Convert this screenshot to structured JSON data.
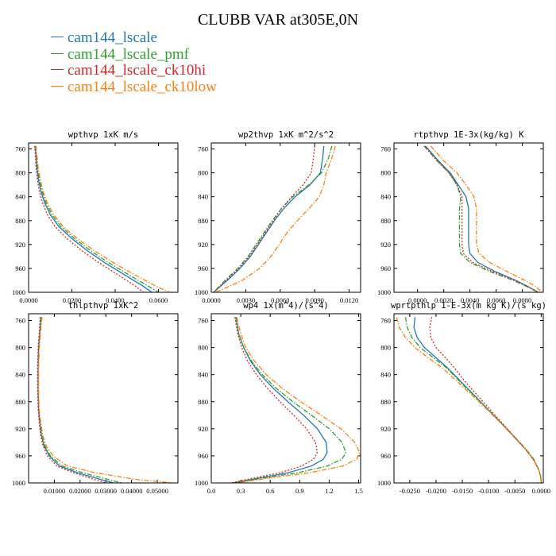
{
  "title": "CLUBB VAR at305E,0N",
  "legend": [
    {
      "label": "cam144_lscale",
      "color": "#1f77b4"
    },
    {
      "label": "cam144_lscale_pmf",
      "color": "#2ca02c"
    },
    {
      "label": "cam144_lscale_ck10hi",
      "color": "#d62728"
    },
    {
      "label": "cam144_lscale_ck10low",
      "color": "#ff7f0e"
    }
  ],
  "chart_data": [
    {
      "type": "line",
      "title": "wpthvp   1xK m/s",
      "xlim": [
        0,
        0.069
      ],
      "xticks": [
        0,
        0.02,
        0.04,
        0.06
      ],
      "xtick_labels": [
        "0.0000",
        "0.0200",
        "0.0400",
        "0.0600"
      ],
      "ylim": [
        1000,
        750
      ],
      "yticks": [
        760,
        800,
        840,
        880,
        920,
        960,
        1000
      ],
      "ytick_labels": [
        "760",
        "800",
        "840",
        "880",
        "920",
        "960",
        "1000"
      ],
      "y": [
        755,
        770,
        790,
        810,
        830,
        850,
        870,
        890,
        910,
        930,
        950,
        970,
        990,
        1000
      ],
      "series": [
        {
          "color": "#1f77b4",
          "dash": "solid",
          "values": [
            0.003,
            0.0034,
            0.0038,
            0.0045,
            0.0056,
            0.0074,
            0.01,
            0.014,
            0.02,
            0.027,
            0.035,
            0.044,
            0.053,
            0.057
          ]
        },
        {
          "color": "#2ca02c",
          "dash": "dashdot",
          "values": [
            0.0032,
            0.0036,
            0.0041,
            0.0049,
            0.0061,
            0.008,
            0.0108,
            0.015,
            0.0212,
            0.0285,
            0.0368,
            0.046,
            0.0555,
            0.06
          ]
        },
        {
          "color": "#d62728",
          "dash": "dot",
          "values": [
            0.0028,
            0.0031,
            0.0034,
            0.004,
            0.0049,
            0.0064,
            0.0087,
            0.0122,
            0.0177,
            0.0245,
            0.0323,
            0.041,
            0.0495,
            0.053
          ]
        },
        {
          "color": "#ff7f0e",
          "dash": "dashdot",
          "values": [
            0.0034,
            0.0038,
            0.0044,
            0.0053,
            0.0066,
            0.0086,
            0.0116,
            0.016,
            0.0225,
            0.0302,
            0.039,
            0.0487,
            0.059,
            0.065
          ]
        }
      ]
    },
    {
      "type": "line",
      "title": "wp2thvp   1xK m^2/s^2",
      "xlim": [
        0,
        0.013
      ],
      "xticks": [
        0,
        0.003,
        0.006,
        0.009,
        0.012
      ],
      "xtick_labels": [
        "0.0000",
        "0.0030",
        "0.0060",
        "0.0090",
        "0.0120"
      ],
      "ylim": [
        1000,
        750
      ],
      "yticks": [
        760,
        800,
        840,
        880,
        920,
        960,
        1000
      ],
      "ytick_labels": [
        "760",
        "800",
        "840",
        "880",
        "920",
        "960",
        "1000"
      ],
      "y": [
        755,
        775,
        800,
        820,
        840,
        860,
        880,
        900,
        920,
        940,
        960,
        980,
        1000
      ],
      "series": [
        {
          "color": "#1f77b4",
          "dash": "solid",
          "values": [
            0.0098,
            0.0097,
            0.0095,
            0.0086,
            0.0073,
            0.0063,
            0.0055,
            0.0048,
            0.0041,
            0.0034,
            0.0025,
            0.0014,
            0.0002
          ]
        },
        {
          "color": "#2ca02c",
          "dash": "dashdot",
          "values": [
            0.0105,
            0.0102,
            0.0096,
            0.0085,
            0.0071,
            0.0061,
            0.0053,
            0.0046,
            0.0039,
            0.0032,
            0.0023,
            0.0012,
            0.0002
          ]
        },
        {
          "color": "#d62728",
          "dash": "dot",
          "values": [
            0.009,
            0.0089,
            0.0087,
            0.008,
            0.007,
            0.0061,
            0.0054,
            0.0047,
            0.004,
            0.0033,
            0.0024,
            0.0013,
            0.0002
          ]
        },
        {
          "color": "#ff7f0e",
          "dash": "dashdot",
          "values": [
            0.0108,
            0.0105,
            0.01,
            0.0098,
            0.0094,
            0.0085,
            0.0075,
            0.0066,
            0.0059,
            0.0052,
            0.0042,
            0.0027,
            0.0004
          ]
        }
      ]
    },
    {
      "type": "line",
      "title": "rtpthvp   1E-3x(kg/kg) K",
      "xlim": [
        -0.0018,
        0.0096
      ],
      "xticks": [
        0,
        0.002,
        0.004,
        0.006,
        0.008
      ],
      "xtick_labels": [
        "0.0000",
        "0.0020",
        "0.0040",
        "0.0060",
        "0.0080"
      ],
      "ylim": [
        1000,
        750
      ],
      "yticks": [
        760,
        800,
        840,
        880,
        920,
        960,
        1000
      ],
      "ytick_labels": [
        "760",
        "800",
        "840",
        "880",
        "920",
        "960",
        "1000"
      ],
      "y": [
        755,
        780,
        800,
        820,
        840,
        860,
        880,
        900,
        920,
        935,
        950,
        965,
        980,
        990,
        1000
      ],
      "series": [
        {
          "color": "#1f77b4",
          "dash": "solid",
          "values": [
            0.0006,
            0.0016,
            0.0025,
            0.0031,
            0.0037,
            0.0039,
            0.0039,
            0.0039,
            0.0039,
            0.004,
            0.0046,
            0.0059,
            0.0075,
            0.0084,
            0.0092
          ]
        },
        {
          "color": "#2ca02c",
          "dash": "dashdot",
          "values": [
            0.0005,
            0.0015,
            0.0024,
            0.003,
            0.0033,
            0.0032,
            0.0032,
            0.0032,
            0.0032,
            0.0033,
            0.004,
            0.0055,
            0.0073,
            0.0083,
            0.0092
          ]
        },
        {
          "color": "#d62728",
          "dash": "dot",
          "values": [
            0.0005,
            0.0015,
            0.0024,
            0.003,
            0.0034,
            0.0034,
            0.0034,
            0.0034,
            0.0034,
            0.0035,
            0.0042,
            0.0057,
            0.0074,
            0.0084,
            0.0092
          ]
        },
        {
          "color": "#ff7f0e",
          "dash": "dashdot",
          "values": [
            0.001,
            0.002,
            0.003,
            0.0037,
            0.0043,
            0.0045,
            0.0045,
            0.0045,
            0.0045,
            0.0047,
            0.0055,
            0.0068,
            0.0082,
            0.009,
            0.0095
          ]
        }
      ]
    },
    {
      "type": "line",
      "title": "thlpthvp   1xK^2",
      "xlim": [
        0,
        0.058
      ],
      "xticks": [
        0.01,
        0.02,
        0.03,
        0.04,
        0.05
      ],
      "xtick_labels": [
        "0.01000",
        "0.02000",
        "0.03000",
        "0.04000",
        "0.05000"
      ],
      "ylim": [
        1000,
        750
      ],
      "yticks": [
        760,
        800,
        840,
        880,
        920,
        960,
        1000
      ],
      "ytick_labels": [
        "760",
        "800",
        "840",
        "880",
        "920",
        "960",
        "1000"
      ],
      "y": [
        755,
        780,
        800,
        830,
        860,
        890,
        910,
        930,
        945,
        960,
        975,
        985,
        995,
        1000
      ],
      "series": [
        {
          "color": "#1f77b4",
          "dash": "solid",
          "values": [
            0.0048,
            0.0043,
            0.0039,
            0.0037,
            0.0037,
            0.0039,
            0.0043,
            0.005,
            0.006,
            0.008,
            0.012,
            0.019,
            0.028,
            0.033
          ]
        },
        {
          "color": "#2ca02c",
          "dash": "dashdot",
          "values": [
            0.005,
            0.0044,
            0.004,
            0.0038,
            0.0038,
            0.004,
            0.0045,
            0.0052,
            0.0063,
            0.0085,
            0.013,
            0.021,
            0.031,
            0.036
          ]
        },
        {
          "color": "#d62728",
          "dash": "dot",
          "values": [
            0.0045,
            0.0041,
            0.0037,
            0.0035,
            0.0035,
            0.0037,
            0.0041,
            0.0047,
            0.0056,
            0.0073,
            0.011,
            0.0175,
            0.0255,
            0.03
          ]
        },
        {
          "color": "#ff7f0e",
          "dash": "dashdot",
          "values": [
            0.0052,
            0.0046,
            0.0042,
            0.0039,
            0.0039,
            0.0041,
            0.0047,
            0.0055,
            0.0068,
            0.0095,
            0.015,
            0.026,
            0.042,
            0.056
          ]
        }
      ]
    },
    {
      "type": "line",
      "title": "wp4   1x(m^4)/(s^4)",
      "xlim": [
        0,
        1.52
      ],
      "xticks": [
        0,
        0.3,
        0.6,
        0.9,
        1.2,
        1.5
      ],
      "xtick_labels": [
        "0.0",
        "0.3",
        "0.6",
        "0.9",
        "1.2",
        "1.5"
      ],
      "ylim": [
        1000,
        750
      ],
      "yticks": [
        760,
        800,
        840,
        880,
        920,
        960,
        1000
      ],
      "ytick_labels": [
        "760",
        "800",
        "840",
        "880",
        "920",
        "960",
        "1000"
      ],
      "y": [
        755,
        780,
        800,
        820,
        840,
        860,
        880,
        900,
        920,
        940,
        955,
        965,
        975,
        985,
        993,
        1000
      ],
      "series": [
        {
          "color": "#1f77b4",
          "dash": "solid",
          "values": [
            0.25,
            0.28,
            0.33,
            0.4,
            0.5,
            0.63,
            0.78,
            0.94,
            1.08,
            1.17,
            1.18,
            1.14,
            1.02,
            0.78,
            0.48,
            0.22
          ]
        },
        {
          "color": "#2ca02c",
          "dash": "dashdot",
          "values": [
            0.25,
            0.28,
            0.33,
            0.41,
            0.52,
            0.66,
            0.83,
            1.02,
            1.2,
            1.33,
            1.37,
            1.33,
            1.18,
            0.88,
            0.52,
            0.24
          ]
        },
        {
          "color": "#d62728",
          "dash": "dot",
          "values": [
            0.24,
            0.27,
            0.31,
            0.37,
            0.46,
            0.57,
            0.7,
            0.84,
            0.97,
            1.06,
            1.08,
            1.04,
            0.92,
            0.7,
            0.42,
            0.2
          ]
        },
        {
          "color": "#ff7f0e",
          "dash": "dashdot",
          "values": [
            0.26,
            0.3,
            0.35,
            0.44,
            0.56,
            0.72,
            0.91,
            1.12,
            1.32,
            1.46,
            1.51,
            1.48,
            1.34,
            1.0,
            0.58,
            0.26
          ]
        }
      ]
    },
    {
      "type": "line",
      "title": "wprtpthlp   1-E-3x(m kg K)/(s kg)",
      "xlim": [
        -0.028,
        0.0004
      ],
      "xticks": [
        -0.025,
        -0.02,
        -0.015,
        -0.01,
        -0.005,
        0
      ],
      "xtick_labels": [
        "-0.0250",
        "-0.0200",
        "-0.0150",
        "-0.0100",
        "-0.0050",
        "0.0000"
      ],
      "ylim": [
        1000,
        750
      ],
      "yticks": [
        760,
        800,
        840,
        880,
        920,
        960,
        1000
      ],
      "ytick_labels": [
        "760",
        "800",
        "840",
        "880",
        "920",
        "960",
        "1000"
      ],
      "y": [
        755,
        770,
        785,
        800,
        815,
        830,
        850,
        870,
        890,
        910,
        930,
        950,
        965,
        980,
        990,
        1000
      ],
      "series": [
        {
          "color": "#1f77b4",
          "dash": "solid",
          "values": [
            -0.024,
            -0.0242,
            -0.0236,
            -0.0222,
            -0.02,
            -0.0178,
            -0.0153,
            -0.0128,
            -0.0103,
            -0.0078,
            -0.0054,
            -0.003,
            -0.0015,
            -0.0005,
            -0.0001,
            0.0
          ]
        },
        {
          "color": "#2ca02c",
          "dash": "dashdot",
          "values": [
            -0.0258,
            -0.0255,
            -0.0246,
            -0.023,
            -0.0205,
            -0.018,
            -0.0155,
            -0.0129,
            -0.0103,
            -0.0078,
            -0.0053,
            -0.0029,
            -0.0014,
            -0.0005,
            -0.0001,
            0.0
          ]
        },
        {
          "color": "#d62728",
          "dash": "dot",
          "values": [
            -0.0208,
            -0.0212,
            -0.021,
            -0.02,
            -0.0182,
            -0.0165,
            -0.0145,
            -0.0122,
            -0.0099,
            -0.0076,
            -0.0053,
            -0.003,
            -0.0015,
            -0.0005,
            -0.0001,
            0.0
          ]
        },
        {
          "color": "#ff7f0e",
          "dash": "dashdot",
          "values": [
            -0.0275,
            -0.027,
            -0.0258,
            -0.024,
            -0.0215,
            -0.0188,
            -0.016,
            -0.0132,
            -0.0105,
            -0.0079,
            -0.0054,
            -0.003,
            -0.0015,
            -0.0005,
            -0.0001,
            0.0
          ]
        }
      ]
    }
  ]
}
